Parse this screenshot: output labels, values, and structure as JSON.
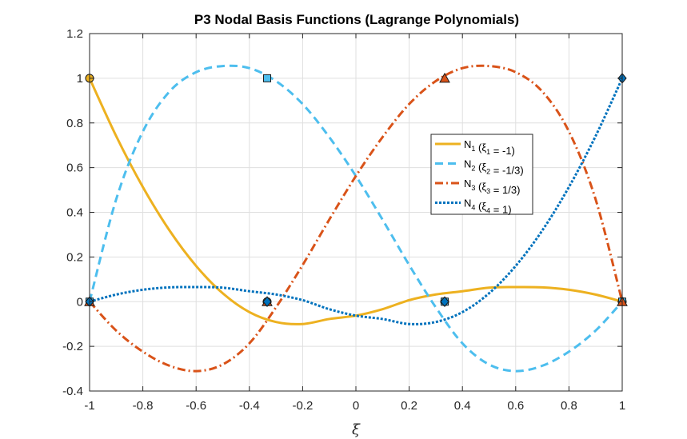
{
  "chart_data": {
    "type": "line",
    "title": "P3 Nodal Basis Functions (Lagrange Polynomials)",
    "xlabel": "ξ",
    "ylabel": "",
    "xlim": [
      -1,
      1
    ],
    "ylim": [
      -0.4,
      1.2
    ],
    "xticks": [
      -1,
      -0.8,
      -0.6,
      -0.4,
      -0.2,
      0,
      0.2,
      0.4,
      0.6,
      0.8,
      1
    ],
    "xtick_labels": [
      "-1",
      "-0.8",
      "-0.6",
      "-0.4",
      "-0.2",
      "0",
      "0.2",
      "0.4",
      "0.6",
      "0.8",
      "1"
    ],
    "yticks": [
      -0.4,
      -0.2,
      0,
      0.2,
      0.4,
      0.6,
      0.8,
      1,
      1.2
    ],
    "ytick_labels": [
      "-0.4",
      "-0.2",
      "0",
      "0.2",
      "0.4",
      "0.6",
      "0.8",
      "1",
      "1.2"
    ],
    "grid": true,
    "legend_position": "right-center",
    "nodes": [
      -1,
      -0.3333,
      0.3333,
      1
    ],
    "x": [
      -1,
      -0.9,
      -0.8,
      -0.7,
      -0.6,
      -0.5,
      -0.4,
      -0.3,
      -0.2,
      -0.1,
      0,
      0.1,
      0.2,
      0.3,
      0.4,
      0.5,
      0.6,
      0.7,
      0.8,
      0.9,
      1
    ],
    "series": [
      {
        "label_main": "N",
        "label_sub": "1",
        "label_mid": " (ξ",
        "label_sub2": "1",
        "label_end": " = -1)",
        "color": "#EDB120",
        "dash": "",
        "marker": "circle",
        "node_index": 0,
        "values": [
          1,
          0.741,
          0.5133,
          0.319,
          0.16,
          0.0375,
          -0.0467,
          -0.091,
          -0.1,
          -0.0776,
          -0.0625,
          -0.0336,
          0.0067,
          0.0321,
          0.0467,
          0.0625,
          0.0653,
          0.0639,
          0.0533,
          0.0318,
          0
        ]
      },
      {
        "label_main": "N",
        "label_sub": "2",
        "label_mid": " (ξ",
        "label_sub2": "2",
        "label_end": " = -1/3)",
        "color": "#4DBEEE",
        "dash": "10,6",
        "marker": "square",
        "node_index": 1,
        "values": [
          0,
          0.4583,
          0.7613,
          0.9405,
          1.0272,
          1.0547,
          1.0453,
          0.9875,
          0.8845,
          0.7366,
          0.5625,
          0.3672,
          0.164,
          -0.0253,
          -0.1867,
          -0.2812,
          -0.3108,
          -0.2869,
          -0.2237,
          -0.1296,
          0
        ]
      },
      {
        "label_main": "N",
        "label_sub": "3",
        "label_mid": " (ξ",
        "label_sub2": "3",
        "label_end": " = 1/3)",
        "color": "#D95319",
        "dash": "10,4,2,4",
        "marker": "triangle",
        "node_index": 2,
        "values": [
          0,
          -0.1296,
          -0.2237,
          -0.2869,
          -0.3108,
          -0.2812,
          -0.1867,
          -0.0253,
          0.164,
          0.3672,
          0.5625,
          0.7366,
          0.8845,
          0.9875,
          1.0453,
          1.0547,
          1.0272,
          0.9405,
          0.7613,
          0.4583,
          0
        ]
      },
      {
        "label_main": "N",
        "label_sub": "4",
        "label_mid": " (ξ",
        "label_sub2": "4",
        "label_end": " = 1)",
        "color": "#0072BD",
        "dash": "3,2",
        "marker": "diamond",
        "node_index": 3,
        "values": [
          0,
          0.0318,
          0.0533,
          0.0639,
          0.0653,
          0.0625,
          0.0467,
          0.0321,
          0.0067,
          -0.0336,
          -0.0625,
          -0.0776,
          -0.1,
          -0.091,
          -0.0467,
          0.0375,
          0.16,
          0.319,
          0.5133,
          0.741,
          1
        ]
      }
    ]
  }
}
